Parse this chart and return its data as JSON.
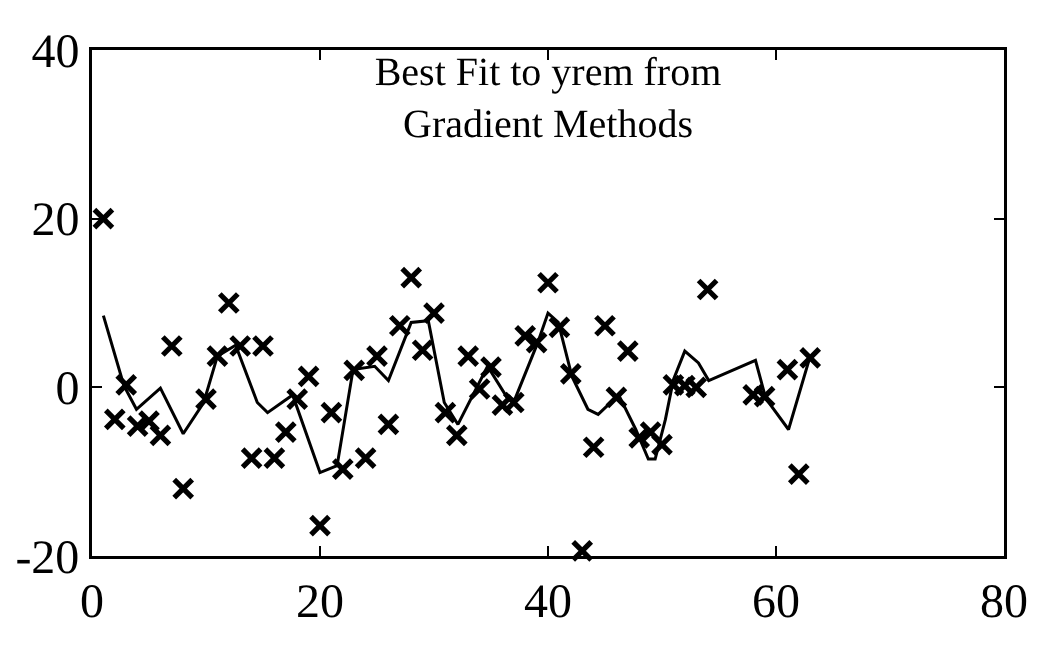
{
  "chart_data": {
    "type": "scatter",
    "title": "Best Fit to yrem from\nGradient Methods",
    "xlim": [
      0,
      80
    ],
    "xticks": [
      0,
      20,
      40,
      60,
      80
    ],
    "ylim": [
      -20,
      40
    ],
    "yticks": [
      -20,
      0,
      20,
      40
    ],
    "grid": false,
    "marker": "cross",
    "series": [
      {
        "color": "#000000",
        "x": [
          1,
          2,
          3,
          4,
          5,
          6,
          7,
          8,
          10,
          11,
          12,
          13,
          14,
          15,
          16,
          17,
          18,
          19,
          20,
          21,
          22,
          23,
          24,
          25,
          26,
          27,
          28,
          29,
          30,
          31,
          32,
          33,
          34,
          35,
          36,
          37,
          38,
          39,
          40,
          41,
          42,
          43,
          44,
          45,
          46,
          47,
          48,
          49,
          50,
          51,
          52,
          53,
          54,
          58,
          59,
          61,
          62,
          63
        ],
        "values": [
          20,
          -3.8,
          0.3,
          -4.6,
          -4,
          -5.7,
          4.9,
          -12,
          -1.4,
          3.7,
          10,
          4.9,
          -8.4,
          4.9,
          -8.4,
          -5.3,
          -1.4,
          1.3,
          -16.4,
          -3,
          -9.7,
          2,
          -8.4,
          3.7,
          -4.4,
          7.3,
          13,
          4.4,
          8.8,
          -3,
          -5.7,
          3.7,
          -0.2,
          2.4,
          -2.1,
          -1.8,
          6.1,
          5.3,
          12.4,
          7.1,
          1.6,
          -19.4,
          -7.1,
          7.3,
          -1.2,
          4.3,
          -6,
          -5.3,
          -6.8,
          0.3,
          0.2,
          0,
          11.6,
          -0.9,
          -1.1,
          2.1,
          -10.3,
          3.5
        ]
      },
      {
        "type": "line",
        "color": "#000000",
        "marker": "none",
        "line_style": "solid",
        "x": [
          1,
          2.8,
          3.9,
          6,
          8,
          9.8,
          11,
          12.6,
          14.5,
          15.4,
          17.6,
          20,
          21.5,
          22.9,
          24.8,
          26,
          28,
          29.5,
          30.9,
          32.1,
          34.7,
          36.5,
          37.1,
          39.1,
          40,
          40.9,
          42.1,
          43.5,
          44.4,
          46.2,
          47.7,
          48.8,
          49.4,
          50.3,
          51,
          52,
          53.2,
          54.1,
          58.2,
          59.1,
          61.1,
          63
        ],
        "values": [
          8.5,
          0.2,
          -2.6,
          -0.1,
          -5.5,
          -1.8,
          3.7,
          5,
          -1.8,
          -3,
          -0.9,
          -10.1,
          -9.3,
          2.1,
          2.5,
          0.8,
          7.7,
          7.9,
          -1.8,
          -4.4,
          2.5,
          -1.4,
          -1.4,
          5.3,
          8.8,
          7.7,
          1.3,
          -2.6,
          -3.2,
          -0.9,
          -5,
          -8.5,
          -8.5,
          -3.8,
          0.9,
          4.3,
          2.9,
          0.8,
          3.2,
          -1.3,
          -5,
          3.7
        ]
      }
    ]
  }
}
